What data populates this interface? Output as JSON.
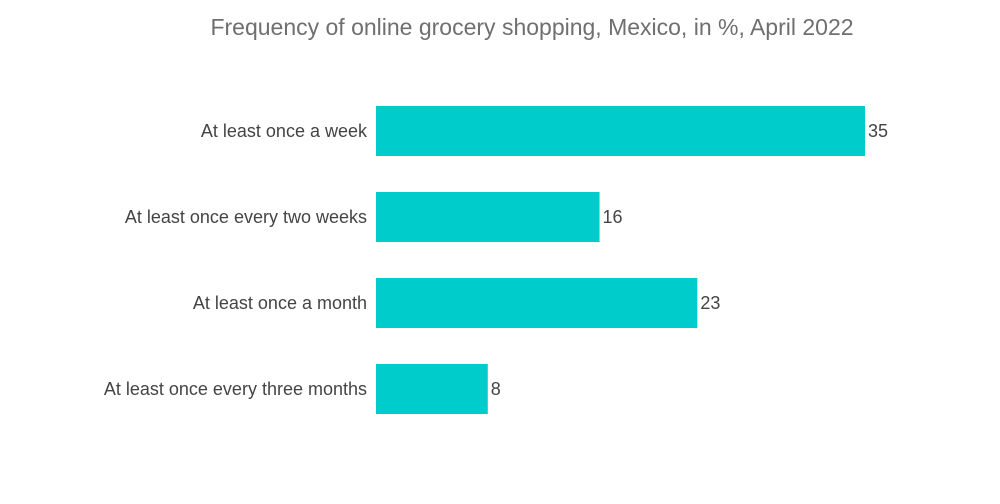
{
  "chart_data": {
    "type": "bar",
    "orientation": "horizontal",
    "title": "Frequency of online grocery shopping, Mexico, in %, April 2022",
    "categories": [
      "At least once a week",
      "At least once every two weeks",
      "At least once a month",
      "At least once every three months"
    ],
    "values": [
      35,
      16,
      23,
      8
    ],
    "xlabel": "",
    "ylabel": "",
    "xlim": [
      0,
      35
    ],
    "grid": false,
    "legend": "none",
    "bar_color": "#00cccc",
    "data_labels": true
  }
}
